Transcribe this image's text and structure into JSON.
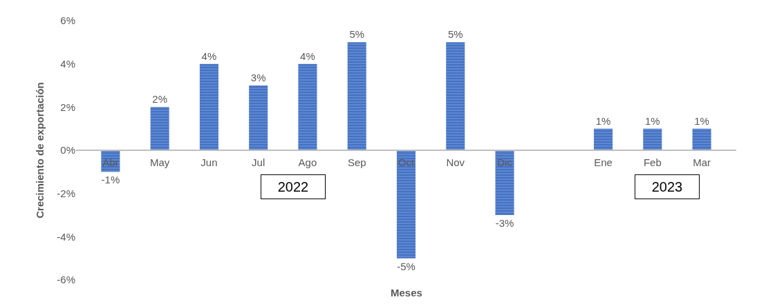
{
  "chart_data": {
    "type": "bar",
    "xlabel": "Meses",
    "ylabel": "Crecimiento de exportación",
    "categories": [
      "Abr",
      "May",
      "Jun",
      "Jul",
      "Ago",
      "Sep",
      "Oct",
      "Nov",
      "Dic",
      null,
      "Ene",
      "Feb",
      "Mar"
    ],
    "values": [
      -1,
      2,
      4,
      3,
      4,
      5,
      -5,
      5,
      -3,
      null,
      1,
      1,
      1
    ],
    "value_labels": [
      "-1%",
      "2%",
      "4%",
      "3%",
      "4%",
      "5%",
      "-5%",
      "5%",
      "-3%",
      null,
      "1%",
      "1%",
      "1%"
    ],
    "color": "#4472c4",
    "ylim": [
      -6,
      6
    ],
    "yticks": [
      {
        "value": -6,
        "label": "-6%"
      },
      {
        "value": -4,
        "label": "-4%"
      },
      {
        "value": -2,
        "label": "-2%"
      },
      {
        "value": 0,
        "label": "0%"
      },
      {
        "value": 2,
        "label": "2%"
      },
      {
        "value": 4,
        "label": "4%"
      },
      {
        "value": 6,
        "label": "6%"
      }
    ],
    "annotations": [
      "2022",
      "2023"
    ]
  }
}
